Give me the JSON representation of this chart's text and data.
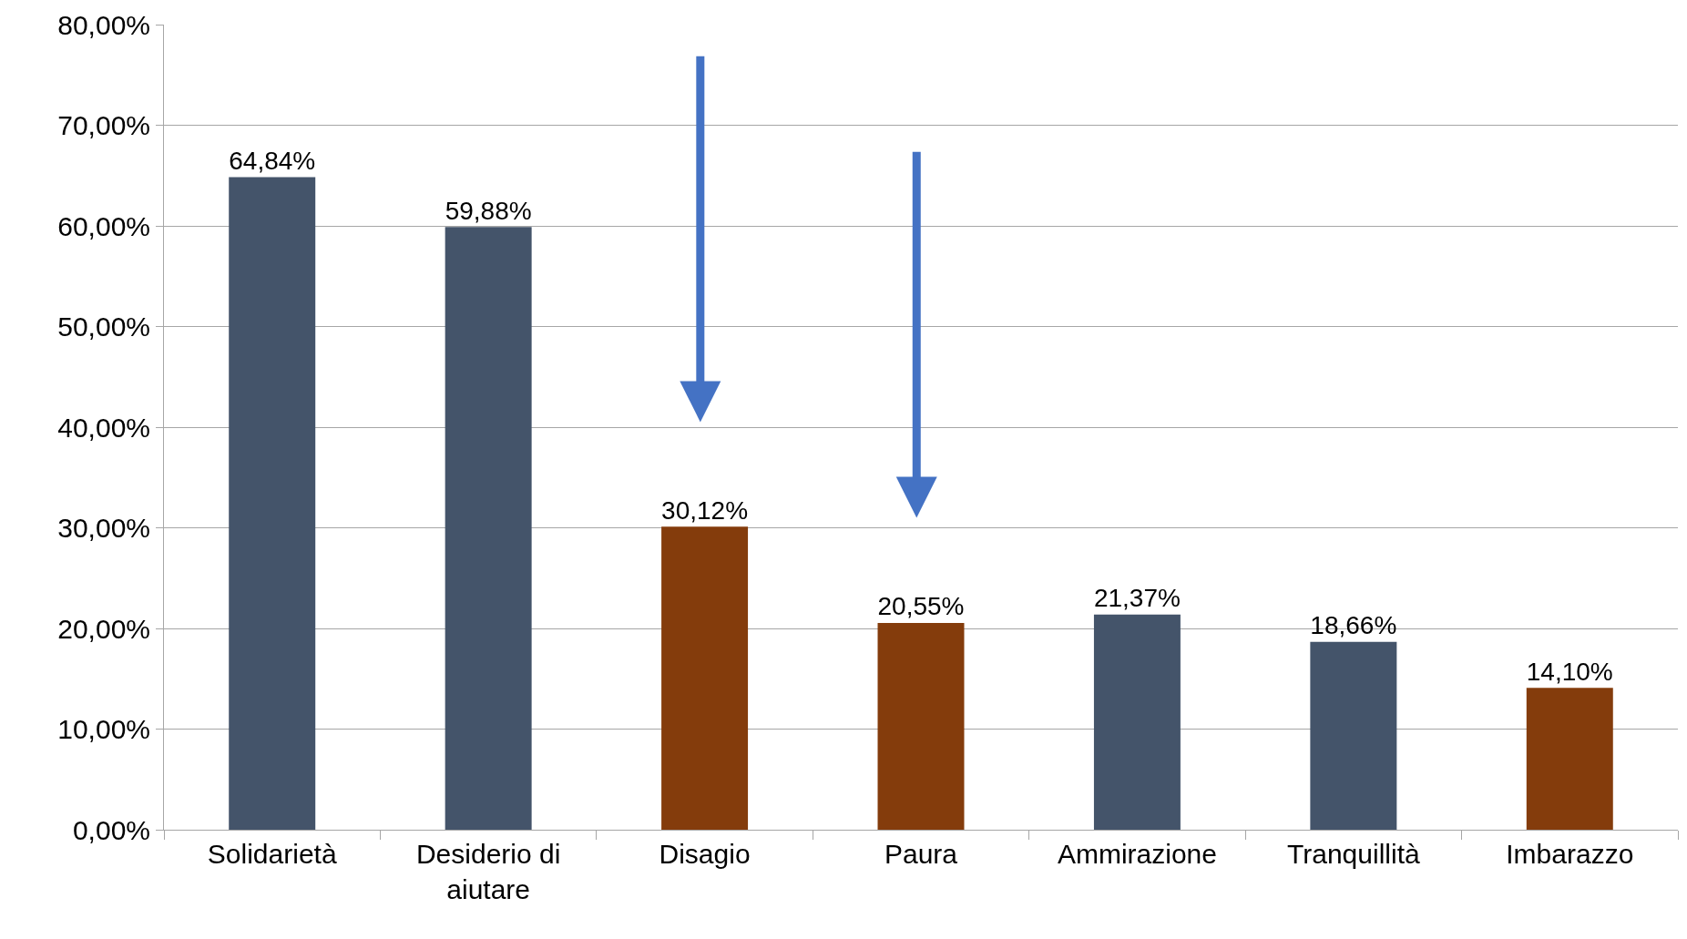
{
  "chart_data": {
    "type": "bar",
    "categories": [
      "Solidarietà",
      "Desiderio di aiutare",
      "Disagio",
      "Paura",
      "Ammirazione",
      "Tranquillità",
      "Imbarazzo"
    ],
    "values": [
      64.84,
      59.88,
      30.12,
      20.55,
      21.37,
      18.66,
      14.1
    ],
    "colors": [
      "#44546a",
      "#44546a",
      "#843c0c",
      "#843c0c",
      "#44546a",
      "#44546a",
      "#843c0c"
    ],
    "value_labels": [
      "64,84%",
      "59,88%",
      "30,12%",
      "20,55%",
      "21,37%",
      "18,66%",
      "14,10%"
    ],
    "ylim": [
      0,
      80
    ],
    "yticks": [
      {
        "value": 0,
        "label": "0,00%"
      },
      {
        "value": 10,
        "label": "10,00%"
      },
      {
        "value": 20,
        "label": "20,00%"
      },
      {
        "value": 30,
        "label": "30,00%"
      },
      {
        "value": 40,
        "label": "40,00%"
      },
      {
        "value": 50,
        "label": "50,00%"
      },
      {
        "value": 60,
        "label": "60,00%"
      },
      {
        "value": 70,
        "label": "70,00%"
      },
      {
        "value": 80,
        "label": "80,00%"
      }
    ],
    "grid": "y",
    "legend": false
  }
}
